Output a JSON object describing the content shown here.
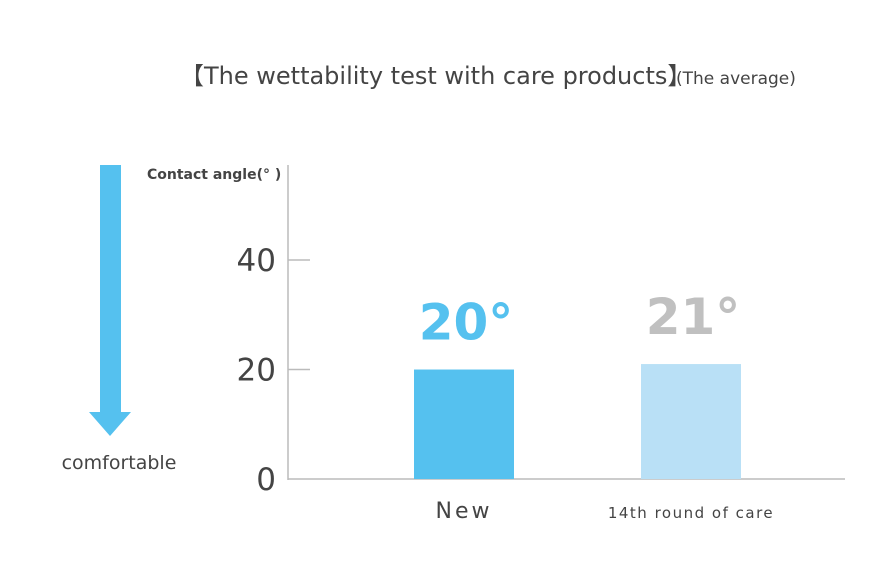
{
  "chart_data": {
    "type": "bar",
    "title": "【The wettability test with care products】",
    "subtitle": "(The average)",
    "y_label": "Contact angle(°  )",
    "annotation": "comfortable",
    "categories": [
      "New",
      "14th round of care"
    ],
    "values": [
      20,
      21
    ],
    "value_labels": [
      "20°",
      "21°"
    ],
    "colors": [
      "#55c1ef",
      "#b9e0f6"
    ],
    "label_colors": [
      "#55c1ef",
      "#c0c0c0"
    ],
    "ylim": [
      0,
      57
    ],
    "yticks": [
      0,
      20,
      40
    ]
  }
}
